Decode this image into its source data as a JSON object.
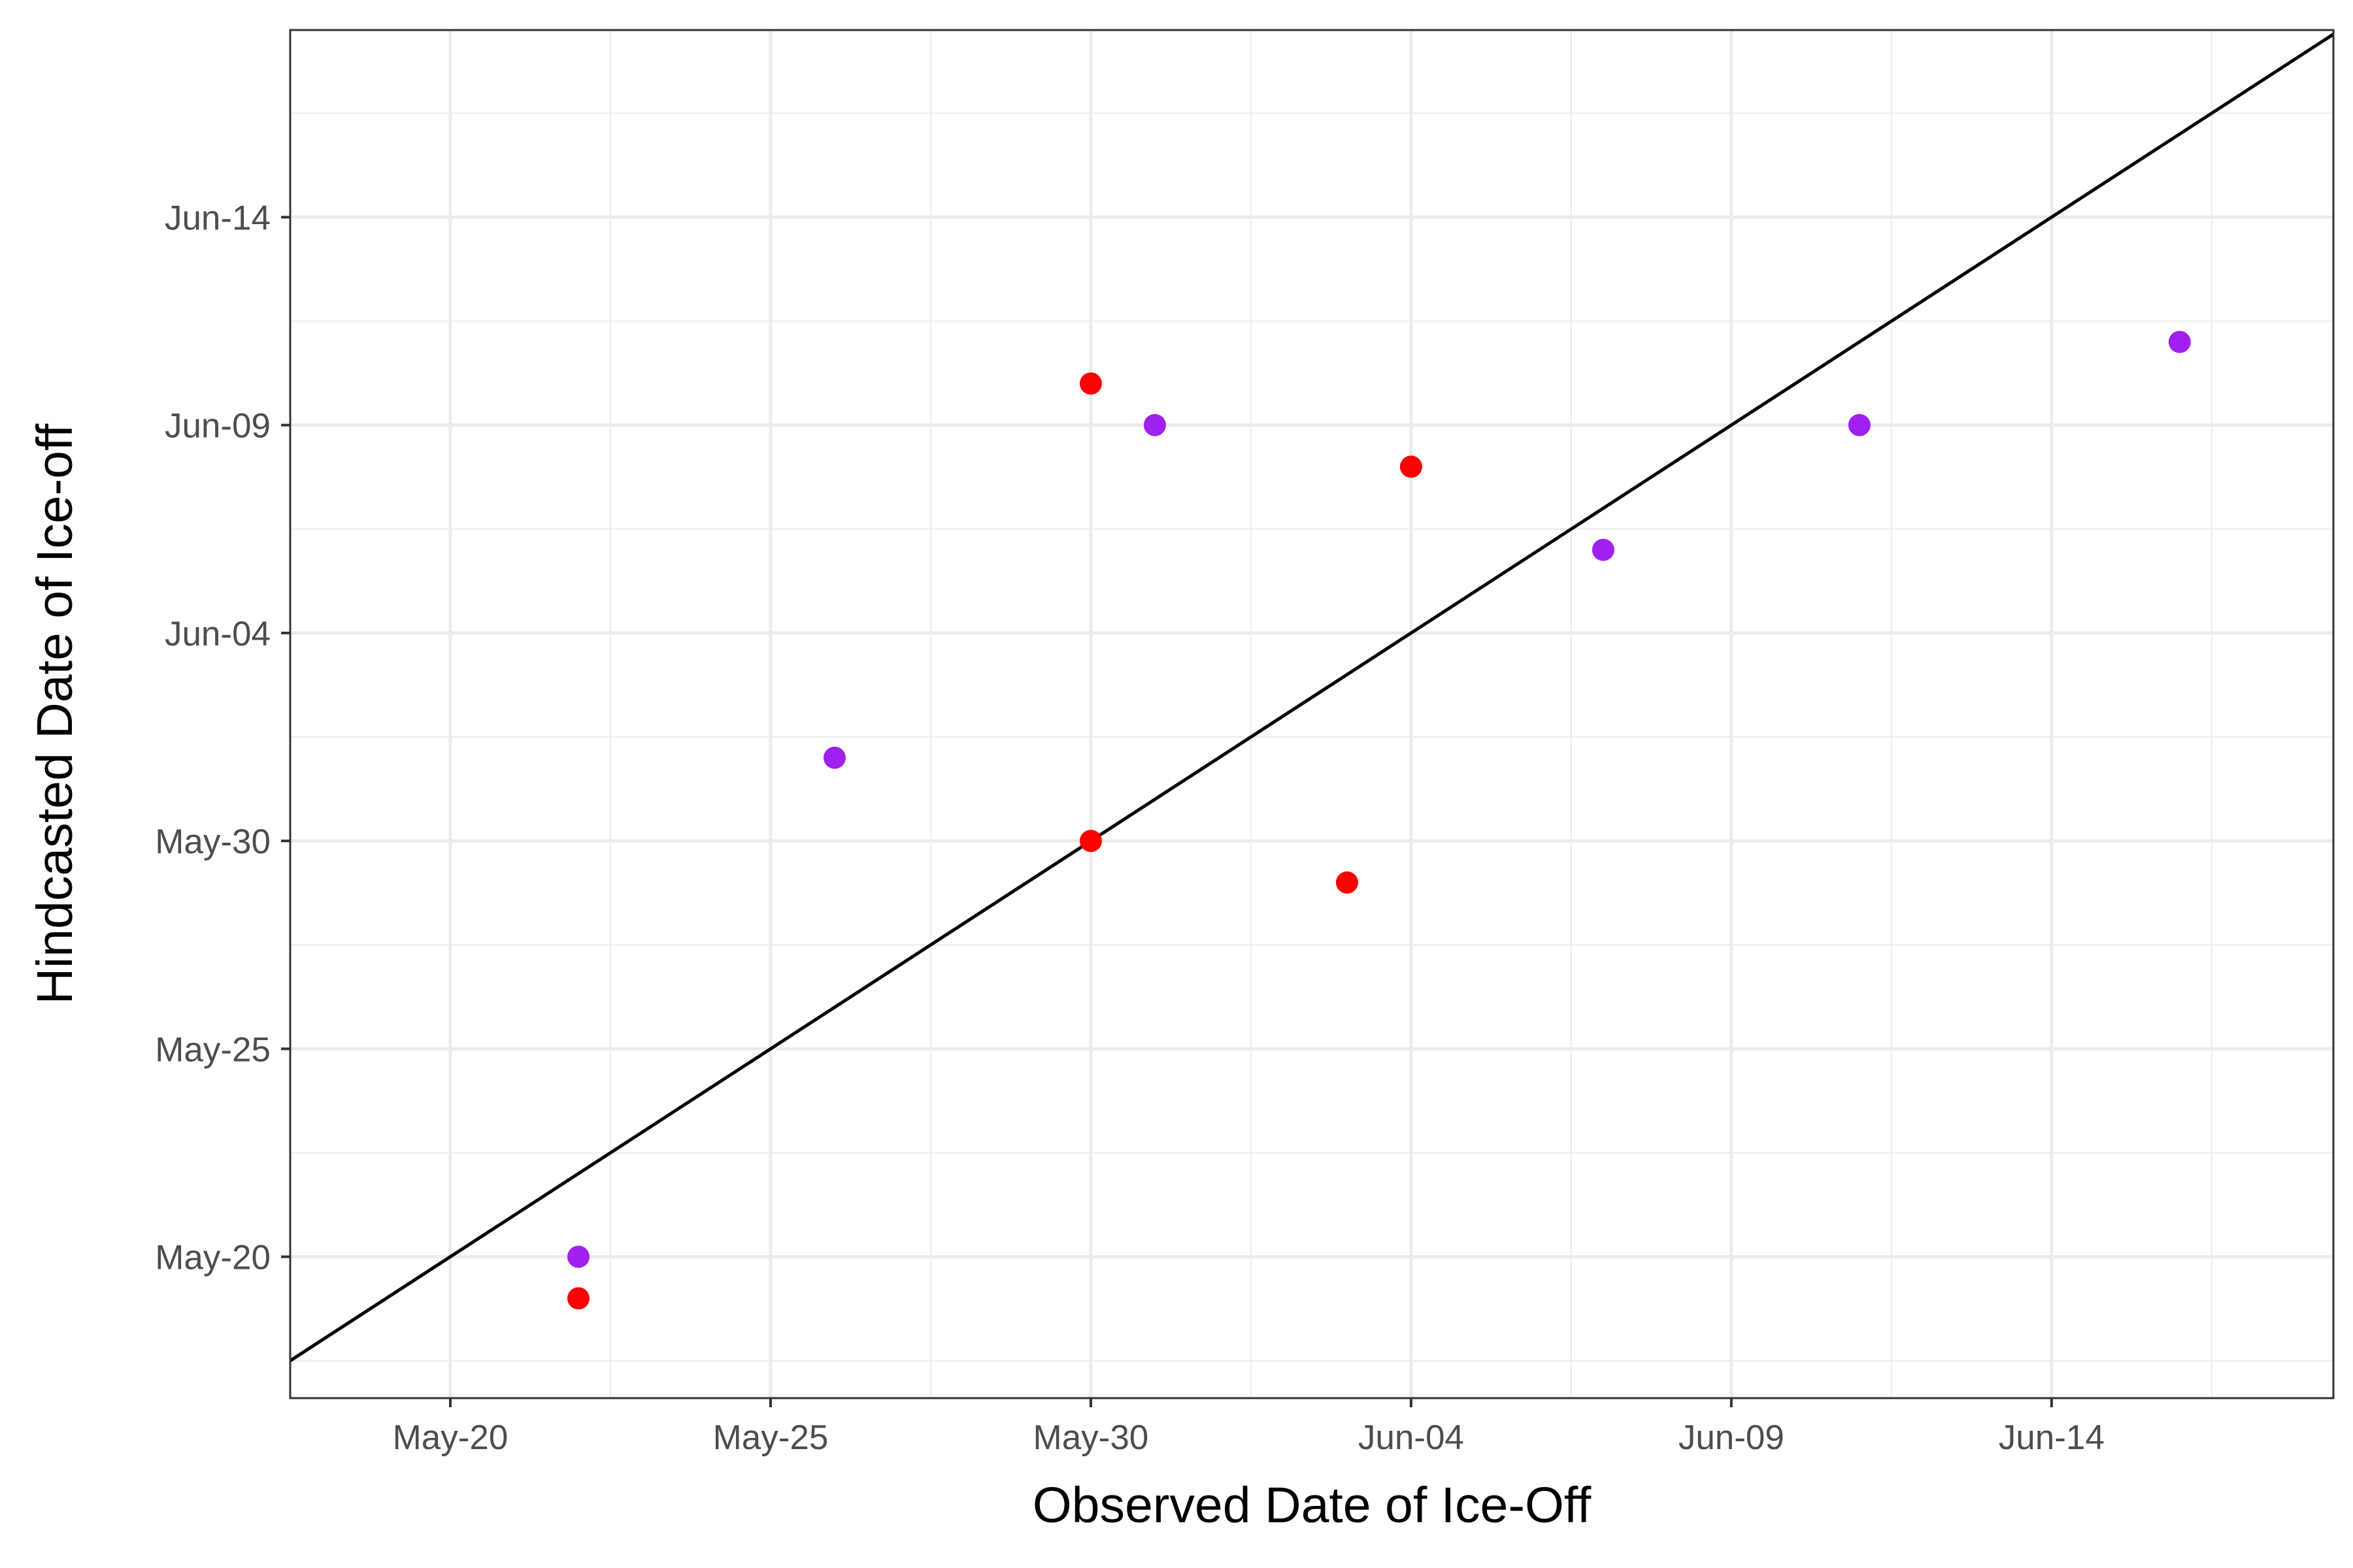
{
  "chart_data": {
    "type": "scatter",
    "title": "",
    "xlabel": "Observed Date of Ice-Off",
    "ylabel": "Hindcasted Date of Ice-off",
    "x_tick_labels": [
      "May-20",
      "May-25",
      "May-30",
      "Jun-04",
      "Jun-09",
      "Jun-14"
    ],
    "y_tick_labels": [
      "May-20",
      "May-25",
      "May-30",
      "Jun-04",
      "Jun-09",
      "Jun-14"
    ],
    "xlim": [
      "May-17.5",
      "Jun-18.4"
    ],
    "ylim": [
      "May-16.6",
      "Jun-18.5"
    ],
    "grid": true,
    "reference_line": "y = x",
    "series": [
      {
        "color": "#ff0000",
        "points": [
          {
            "x": "May-22",
            "y": "May-19"
          },
          {
            "x": "May-30",
            "y": "Jun-10"
          },
          {
            "x": "May-30",
            "y": "May-30"
          },
          {
            "x": "Jun-03",
            "y": "May-29"
          },
          {
            "x": "Jun-04",
            "y": "Jun-08"
          }
        ]
      },
      {
        "color": "#a020f0",
        "points": [
          {
            "x": "May-22",
            "y": "May-20"
          },
          {
            "x": "May-26",
            "y": "Jun-01"
          },
          {
            "x": "May-31",
            "y": "Jun-09"
          },
          {
            "x": "Jun-07",
            "y": "Jun-06"
          },
          {
            "x": "Jun-11",
            "y": "Jun-09"
          },
          {
            "x": "Jun-16",
            "y": "Jun-11"
          }
        ]
      }
    ]
  }
}
